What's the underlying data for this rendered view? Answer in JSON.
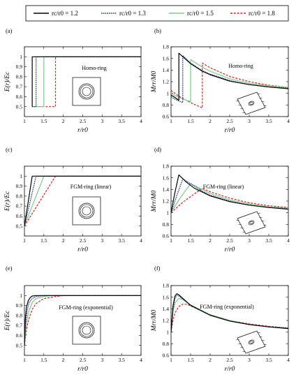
{
  "legend": {
    "entries": [
      {
        "label": "rc/r0 = 1.2",
        "color": "#000000",
        "dash": "solid"
      },
      {
        "label": "rc/r0 = 1.3",
        "color": "#1a2b8f",
        "dash": "dotted"
      },
      {
        "label": "rc/r0 = 1.5",
        "color": "#7fc98a",
        "dash": "solid"
      },
      {
        "label": "rc/r0 = 1.8",
        "color": "#e02020",
        "dash": "dashed"
      }
    ]
  },
  "chart_data": [
    {
      "panel": "(a)",
      "type": "line",
      "title": "Homo-ring",
      "xlabel": "r/r0",
      "ylabel": "E(r)/Ec",
      "xlim": [
        1,
        4
      ],
      "ylim": [
        0.4,
        1.1
      ],
      "xticks": [
        "1",
        "1.5",
        "2",
        "2.5",
        "3",
        "3.5",
        "4"
      ],
      "yticks": [
        "0.5",
        "0.6",
        "0.7",
        "0.8",
        "0.9",
        "1"
      ],
      "inset": "ring",
      "series": [
        {
          "name": "rc/r0 = 1.2",
          "x": [
            1.2,
            1.2,
            1.2,
            4
          ],
          "y": [
            0.5,
            0.5,
            1.0,
            1.0
          ]
        },
        {
          "name": "rc/r0 = 1.3",
          "x": [
            1.2,
            1.3,
            1.3,
            4
          ],
          "y": [
            0.5,
            0.5,
            1.0,
            1.0
          ]
        },
        {
          "name": "rc/r0 = 1.5",
          "x": [
            1.2,
            1.5,
            1.5,
            4
          ],
          "y": [
            0.5,
            0.5,
            1.0,
            1.0
          ]
        },
        {
          "name": "rc/r0 = 1.8",
          "x": [
            1.2,
            1.8,
            1.8,
            4
          ],
          "y": [
            0.5,
            0.5,
            1.0,
            1.0
          ]
        }
      ]
    },
    {
      "panel": "(b)",
      "type": "line",
      "title": "Homo-ring",
      "xlabel": "r/r0",
      "ylabel": "Mrr/M0",
      "xlim": [
        1,
        4
      ],
      "ylim": [
        0.6,
        1.8
      ],
      "xticks": [
        "1",
        "1.5",
        "2",
        "2.5",
        "3",
        "3.5",
        "4"
      ],
      "yticks": [
        "0.6",
        "0.8",
        "1",
        "1.2",
        "1.4",
        "1.6",
        "1.8"
      ],
      "inset": "plate",
      "series": [
        {
          "name": "rc/r0 = 1.2",
          "x": [
            1.0,
            1.1,
            1.2,
            1.2,
            1.3,
            1.5,
            1.8,
            2.0,
            2.5,
            3.0,
            3.5,
            4.0
          ],
          "y": [
            0.97,
            0.93,
            0.88,
            1.69,
            1.63,
            1.51,
            1.38,
            1.32,
            1.21,
            1.15,
            1.11,
            1.08
          ]
        },
        {
          "name": "rc/r0 = 1.3",
          "x": [
            1.0,
            1.1,
            1.2,
            1.3,
            1.3,
            1.5,
            1.8,
            2.0,
            2.5,
            3.0,
            3.5,
            4.0
          ],
          "y": [
            0.94,
            0.9,
            0.87,
            0.84,
            1.65,
            1.52,
            1.39,
            1.33,
            1.22,
            1.15,
            1.11,
            1.09
          ]
        },
        {
          "name": "rc/r0 = 1.5",
          "x": [
            1.0,
            1.2,
            1.4,
            1.5,
            1.5,
            1.8,
            2.0,
            2.5,
            3.0,
            3.5,
            4.0
          ],
          "y": [
            1.0,
            0.93,
            0.88,
            0.86,
            1.58,
            1.45,
            1.38,
            1.25,
            1.17,
            1.13,
            1.1
          ]
        },
        {
          "name": "rc/r0 = 1.8",
          "x": [
            1.0,
            1.2,
            1.5,
            1.8,
            1.8,
            2.0,
            2.5,
            3.0,
            3.5,
            4.0
          ],
          "y": [
            1.05,
            0.95,
            0.84,
            0.75,
            1.52,
            1.44,
            1.29,
            1.2,
            1.14,
            1.1
          ]
        }
      ]
    },
    {
      "panel": "(c)",
      "type": "line",
      "title": "FGM-ring (linear)",
      "xlabel": "r/r0",
      "ylabel": "E(r)/Ec",
      "xlim": [
        1,
        4
      ],
      "ylim": [
        0.4,
        1.1
      ],
      "xticks": [
        "1",
        "1.5",
        "2",
        "2.5",
        "3",
        "3.5",
        "4"
      ],
      "yticks": [
        "0.5",
        "0.6",
        "0.7",
        "0.8",
        "0.9",
        "1"
      ],
      "inset": "ring",
      "series": [
        {
          "name": "rc/r0 = 1.2",
          "x": [
            1.0,
            1.2,
            4.0
          ],
          "y": [
            0.5,
            1.0,
            1.0
          ]
        },
        {
          "name": "rc/r0 = 1.3",
          "x": [
            1.0,
            1.3,
            4.0
          ],
          "y": [
            0.5,
            1.0,
            1.0
          ]
        },
        {
          "name": "rc/r0 = 1.5",
          "x": [
            1.0,
            1.5,
            4.0
          ],
          "y": [
            0.5,
            1.0,
            1.0
          ]
        },
        {
          "name": "rc/r0 = 1.8",
          "x": [
            1.0,
            1.8,
            4.0
          ],
          "y": [
            0.5,
            1.0,
            1.0
          ]
        }
      ]
    },
    {
      "panel": "(d)",
      "type": "line",
      "title": "FGM-ring (linear)",
      "xlabel": "r/r0",
      "ylabel": "Mrr/M0",
      "xlim": [
        1,
        4
      ],
      "ylim": [
        0.6,
        1.8
      ],
      "xticks": [
        "1",
        "1.5",
        "2",
        "2.5",
        "3",
        "3.5",
        "4"
      ],
      "yticks": [
        "0.6",
        "0.8",
        "1",
        "1.2",
        "1.4",
        "1.6",
        "1.8"
      ],
      "inset": "plate",
      "series": [
        {
          "name": "rc/r0 = 1.2",
          "x": [
            1.0,
            1.1,
            1.2,
            1.4,
            1.6,
            2.0,
            2.5,
            3.0,
            3.5,
            4.0
          ],
          "y": [
            1.0,
            1.35,
            1.65,
            1.52,
            1.42,
            1.29,
            1.19,
            1.13,
            1.09,
            1.06
          ]
        },
        {
          "name": "rc/r0 = 1.3",
          "x": [
            1.0,
            1.15,
            1.3,
            1.5,
            1.8,
            2.0,
            2.5,
            3.0,
            3.5,
            4.0
          ],
          "y": [
            1.0,
            1.3,
            1.58,
            1.5,
            1.37,
            1.3,
            1.2,
            1.13,
            1.09,
            1.07
          ]
        },
        {
          "name": "rc/r0 = 1.5",
          "x": [
            1.0,
            1.2,
            1.5,
            1.8,
            2.0,
            2.5,
            3.0,
            3.5,
            4.0
          ],
          "y": [
            1.0,
            1.22,
            1.5,
            1.4,
            1.33,
            1.22,
            1.15,
            1.1,
            1.08
          ]
        },
        {
          "name": "rc/r0 = 1.8",
          "x": [
            1.0,
            1.3,
            1.8,
            2.0,
            2.5,
            3.0,
            3.5,
            4.0
          ],
          "y": [
            1.0,
            1.18,
            1.42,
            1.36,
            1.25,
            1.17,
            1.12,
            1.09
          ]
        }
      ]
    },
    {
      "panel": "(e)",
      "type": "line",
      "title": "FGM-ring (exponential)",
      "xlabel": "r/r0",
      "ylabel": "E(r)/Ec",
      "xlim": [
        1,
        4
      ],
      "ylim": [
        0.4,
        1.1
      ],
      "xticks": [
        "1",
        "1.5",
        "2",
        "2.5",
        "3",
        "3.5",
        "4"
      ],
      "yticks": [
        "0.5",
        "0.6",
        "0.7",
        "0.8",
        "0.9",
        "1"
      ],
      "inset": "ring",
      "series": [
        {
          "name": "rc/r0 = 1.2",
          "x": [
            1.0,
            1.02,
            1.05,
            1.1,
            1.15,
            1.2,
            1.3,
            1.5,
            4.0
          ],
          "y": [
            0.5,
            0.75,
            0.88,
            0.95,
            0.98,
            0.995,
            1.0,
            1.0,
            1.0
          ]
        },
        {
          "name": "rc/r0 = 1.3",
          "x": [
            1.0,
            1.03,
            1.07,
            1.12,
            1.2,
            1.3,
            1.5,
            4.0
          ],
          "y": [
            0.5,
            0.72,
            0.85,
            0.93,
            0.97,
            0.99,
            1.0,
            1.0
          ]
        },
        {
          "name": "rc/r0 = 1.5",
          "x": [
            1.0,
            1.05,
            1.1,
            1.2,
            1.3,
            1.5,
            1.7,
            4.0
          ],
          "y": [
            0.5,
            0.72,
            0.83,
            0.93,
            0.97,
            0.99,
            1.0,
            1.0
          ]
        },
        {
          "name": "rc/r0 = 1.8",
          "x": [
            1.0,
            1.05,
            1.1,
            1.2,
            1.3,
            1.5,
            1.8,
            2.0,
            4.0
          ],
          "y": [
            0.5,
            0.65,
            0.75,
            0.86,
            0.92,
            0.97,
            0.99,
            1.0,
            1.0
          ]
        }
      ]
    },
    {
      "panel": "(f)",
      "type": "line",
      "title": "FGM-ring (exponential)",
      "xlabel": "r/r0",
      "ylabel": "Mrr/M0",
      "xlim": [
        1,
        4
      ],
      "ylim": [
        0.6,
        1.8
      ],
      "xticks": [
        "1",
        "1.5",
        "2",
        "2.5",
        "3",
        "3.5",
        "4"
      ],
      "yticks": [
        "0.6",
        "0.8",
        "1",
        "1.2",
        "1.4",
        "1.6",
        "1.8"
      ],
      "inset": "plate",
      "series": [
        {
          "name": "rc/r0 = 1.2",
          "x": [
            1.0,
            1.05,
            1.1,
            1.15,
            1.2,
            1.3,
            1.5,
            2.0,
            2.5,
            3.0,
            3.5,
            4.0
          ],
          "y": [
            1.0,
            1.45,
            1.62,
            1.66,
            1.64,
            1.58,
            1.46,
            1.29,
            1.19,
            1.13,
            1.09,
            1.06
          ]
        },
        {
          "name": "rc/r0 = 1.3",
          "x": [
            1.0,
            1.05,
            1.1,
            1.15,
            1.2,
            1.3,
            1.5,
            2.0,
            2.5,
            3.0,
            3.5,
            4.0
          ],
          "y": [
            1.0,
            1.4,
            1.58,
            1.63,
            1.62,
            1.57,
            1.46,
            1.29,
            1.19,
            1.13,
            1.09,
            1.07
          ]
        },
        {
          "name": "rc/r0 = 1.5",
          "x": [
            1.0,
            1.05,
            1.1,
            1.2,
            1.3,
            1.5,
            2.0,
            2.5,
            3.0,
            3.5,
            4.0
          ],
          "y": [
            1.0,
            1.35,
            1.5,
            1.58,
            1.56,
            1.47,
            1.3,
            1.2,
            1.13,
            1.09,
            1.07
          ]
        },
        {
          "name": "rc/r0 = 1.8",
          "x": [
            1.0,
            1.05,
            1.1,
            1.2,
            1.3,
            1.4,
            1.6,
            2.0,
            2.5,
            3.0,
            3.5,
            4.0
          ],
          "y": [
            1.0,
            1.2,
            1.33,
            1.44,
            1.48,
            1.48,
            1.42,
            1.3,
            1.2,
            1.14,
            1.1,
            1.07
          ]
        }
      ]
    }
  ]
}
